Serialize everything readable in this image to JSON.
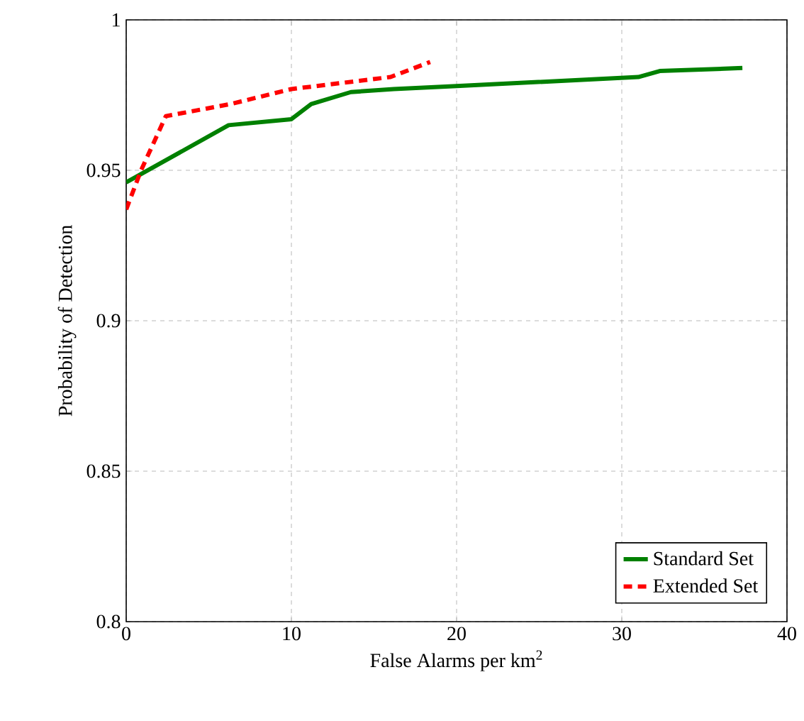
{
  "chart_data": {
    "type": "line",
    "xlabel": "False Alarms per km$^{2}$",
    "ylabel": "Probability of Detection",
    "xlim": [
      0,
      40
    ],
    "ylim": [
      0.8,
      1
    ],
    "xticks": [
      0,
      10,
      20,
      30,
      40
    ],
    "yticks": [
      0.8,
      0.85,
      0.9,
      0.95,
      1
    ],
    "grid": true,
    "legend": "bottom right",
    "series": [
      {
        "name": "Standard Set",
        "color": "#008000",
        "line_style": "solid",
        "x": [
          0,
          6.2,
          10,
          11.2,
          13.6,
          16.2,
          20,
          31,
          32.3,
          37.3
        ],
        "values": [
          0.946,
          0.965,
          0.967,
          0.972,
          0.976,
          0.977,
          0.978,
          0.981,
          0.983,
          0.984
        ]
      },
      {
        "name": "Extended Set",
        "color": "#ff0000",
        "line_style": "dashed",
        "x": [
          0,
          0.9,
          2.4,
          6.3,
          10,
          16,
          18.4
        ],
        "values": [
          0.937,
          0.95,
          0.968,
          0.972,
          0.977,
          0.981,
          0.986
        ]
      }
    ]
  }
}
